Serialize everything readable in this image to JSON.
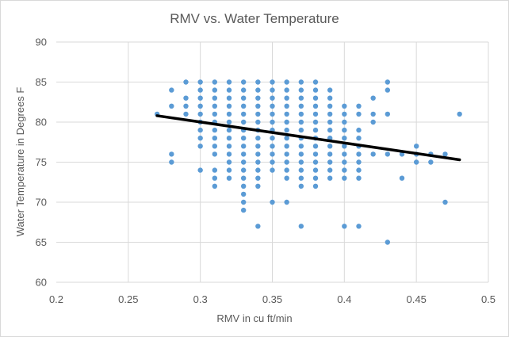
{
  "chart_data": {
    "type": "scatter",
    "title": "RMV vs. Water Temperature",
    "xlabel": "RMV in cu ft/min",
    "ylabel": "Water Temperature in Degrees F",
    "xlim": [
      0.2,
      0.5
    ],
    "ylim": [
      60,
      90
    ],
    "x_ticks": [
      "0.2",
      "0.25",
      "0.3",
      "0.35",
      "0.4",
      "0.45",
      "0.5"
    ],
    "y_ticks": [
      "60",
      "65",
      "70",
      "75",
      "80",
      "85",
      "90"
    ],
    "grid": "horizontal",
    "legend": "none",
    "colors": {
      "points": "#5b9bd5",
      "trendline": "#000000",
      "grid": "#d9d9d9",
      "text": "#595959"
    },
    "trendline": {
      "type": "linear",
      "x": [
        0.27,
        0.48
      ],
      "y": [
        80.8,
        75.3
      ]
    },
    "points": [
      [
        0.27,
        81
      ],
      [
        0.28,
        84
      ],
      [
        0.28,
        82
      ],
      [
        0.28,
        76
      ],
      [
        0.28,
        75
      ],
      [
        0.29,
        85
      ],
      [
        0.29,
        83
      ],
      [
        0.29,
        82
      ],
      [
        0.29,
        81
      ],
      [
        0.3,
        85
      ],
      [
        0.3,
        84
      ],
      [
        0.3,
        83
      ],
      [
        0.3,
        82
      ],
      [
        0.3,
        81
      ],
      [
        0.3,
        80
      ],
      [
        0.3,
        79
      ],
      [
        0.3,
        78
      ],
      [
        0.3,
        77
      ],
      [
        0.3,
        74
      ],
      [
        0.31,
        85
      ],
      [
        0.31,
        84
      ],
      [
        0.31,
        83
      ],
      [
        0.31,
        82
      ],
      [
        0.31,
        81
      ],
      [
        0.31,
        80
      ],
      [
        0.31,
        79
      ],
      [
        0.31,
        78
      ],
      [
        0.31,
        77
      ],
      [
        0.31,
        76
      ],
      [
        0.31,
        74
      ],
      [
        0.31,
        73
      ],
      [
        0.31,
        72
      ],
      [
        0.32,
        85
      ],
      [
        0.32,
        84
      ],
      [
        0.32,
        83
      ],
      [
        0.32,
        82
      ],
      [
        0.32,
        81
      ],
      [
        0.32,
        80
      ],
      [
        0.32,
        79
      ],
      [
        0.32,
        78
      ],
      [
        0.32,
        77
      ],
      [
        0.32,
        76
      ],
      [
        0.32,
        75
      ],
      [
        0.32,
        74
      ],
      [
        0.32,
        73
      ],
      [
        0.33,
        85
      ],
      [
        0.33,
        84
      ],
      [
        0.33,
        83
      ],
      [
        0.33,
        82
      ],
      [
        0.33,
        81
      ],
      [
        0.33,
        80
      ],
      [
        0.33,
        79
      ],
      [
        0.33,
        78
      ],
      [
        0.33,
        77
      ],
      [
        0.33,
        76
      ],
      [
        0.33,
        75
      ],
      [
        0.33,
        74
      ],
      [
        0.33,
        73
      ],
      [
        0.33,
        72
      ],
      [
        0.33,
        71
      ],
      [
        0.33,
        70
      ],
      [
        0.33,
        69
      ],
      [
        0.34,
        85
      ],
      [
        0.34,
        84
      ],
      [
        0.34,
        83
      ],
      [
        0.34,
        82
      ],
      [
        0.34,
        81
      ],
      [
        0.34,
        80
      ],
      [
        0.34,
        79
      ],
      [
        0.34,
        78
      ],
      [
        0.34,
        77
      ],
      [
        0.34,
        76
      ],
      [
        0.34,
        75
      ],
      [
        0.34,
        74
      ],
      [
        0.34,
        73
      ],
      [
        0.34,
        72
      ],
      [
        0.34,
        67
      ],
      [
        0.35,
        85
      ],
      [
        0.35,
        84
      ],
      [
        0.35,
        83
      ],
      [
        0.35,
        82
      ],
      [
        0.35,
        81
      ],
      [
        0.35,
        80
      ],
      [
        0.35,
        79
      ],
      [
        0.35,
        78
      ],
      [
        0.35,
        77
      ],
      [
        0.35,
        76
      ],
      [
        0.35,
        75
      ],
      [
        0.35,
        74
      ],
      [
        0.35,
        70
      ],
      [
        0.36,
        85
      ],
      [
        0.36,
        84
      ],
      [
        0.36,
        83
      ],
      [
        0.36,
        82
      ],
      [
        0.36,
        81
      ],
      [
        0.36,
        80
      ],
      [
        0.36,
        79
      ],
      [
        0.36,
        78
      ],
      [
        0.36,
        77
      ],
      [
        0.36,
        76
      ],
      [
        0.36,
        75
      ],
      [
        0.36,
        74
      ],
      [
        0.36,
        73
      ],
      [
        0.36,
        70
      ],
      [
        0.37,
        85
      ],
      [
        0.37,
        84
      ],
      [
        0.37,
        83
      ],
      [
        0.37,
        82
      ],
      [
        0.37,
        81
      ],
      [
        0.37,
        80
      ],
      [
        0.37,
        79
      ],
      [
        0.37,
        78
      ],
      [
        0.37,
        77
      ],
      [
        0.37,
        76
      ],
      [
        0.37,
        75
      ],
      [
        0.37,
        74
      ],
      [
        0.37,
        73
      ],
      [
        0.37,
        72
      ],
      [
        0.37,
        67
      ],
      [
        0.38,
        85
      ],
      [
        0.38,
        84
      ],
      [
        0.38,
        83
      ],
      [
        0.38,
        82
      ],
      [
        0.38,
        81
      ],
      [
        0.38,
        80
      ],
      [
        0.38,
        79
      ],
      [
        0.38,
        78
      ],
      [
        0.38,
        77
      ],
      [
        0.38,
        76
      ],
      [
        0.38,
        75
      ],
      [
        0.38,
        74
      ],
      [
        0.38,
        73
      ],
      [
        0.38,
        72
      ],
      [
        0.39,
        84
      ],
      [
        0.39,
        83
      ],
      [
        0.39,
        82
      ],
      [
        0.39,
        81
      ],
      [
        0.39,
        80
      ],
      [
        0.39,
        79
      ],
      [
        0.39,
        78
      ],
      [
        0.39,
        77
      ],
      [
        0.39,
        76
      ],
      [
        0.39,
        75
      ],
      [
        0.39,
        74
      ],
      [
        0.39,
        73
      ],
      [
        0.4,
        82
      ],
      [
        0.4,
        81
      ],
      [
        0.4,
        80
      ],
      [
        0.4,
        79
      ],
      [
        0.4,
        78
      ],
      [
        0.4,
        77
      ],
      [
        0.4,
        76
      ],
      [
        0.4,
        75
      ],
      [
        0.4,
        74
      ],
      [
        0.4,
        73
      ],
      [
        0.4,
        67
      ],
      [
        0.41,
        82
      ],
      [
        0.41,
        81
      ],
      [
        0.41,
        79
      ],
      [
        0.41,
        78
      ],
      [
        0.41,
        77
      ],
      [
        0.41,
        76
      ],
      [
        0.41,
        75
      ],
      [
        0.41,
        74
      ],
      [
        0.41,
        73
      ],
      [
        0.41,
        67
      ],
      [
        0.42,
        83
      ],
      [
        0.42,
        81
      ],
      [
        0.42,
        80
      ],
      [
        0.42,
        76
      ],
      [
        0.43,
        85
      ],
      [
        0.43,
        84
      ],
      [
        0.43,
        81
      ],
      [
        0.43,
        76
      ],
      [
        0.43,
        65
      ],
      [
        0.44,
        76
      ],
      [
        0.44,
        73
      ],
      [
        0.45,
        77
      ],
      [
        0.45,
        76
      ],
      [
        0.45,
        75
      ],
      [
        0.46,
        76
      ],
      [
        0.46,
        75
      ],
      [
        0.47,
        76
      ],
      [
        0.47,
        70
      ],
      [
        0.48,
        81
      ]
    ]
  }
}
